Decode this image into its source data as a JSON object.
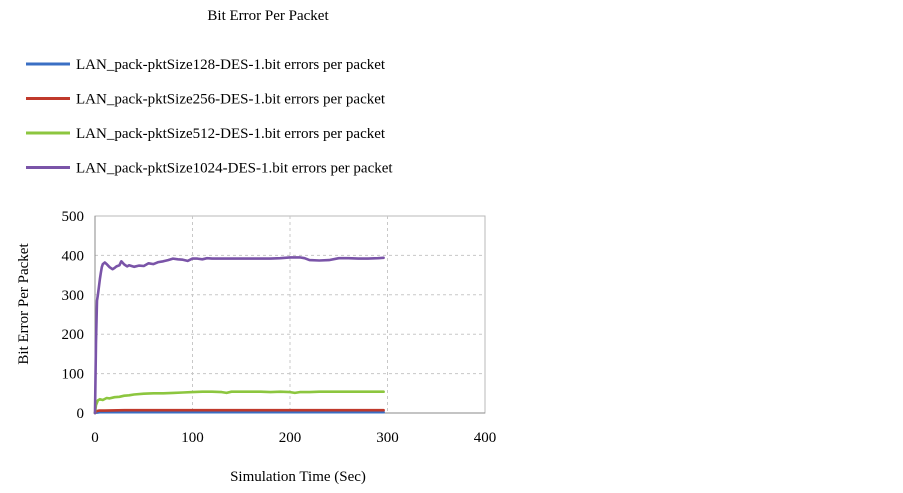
{
  "chart_data": {
    "type": "line",
    "title": "Bit Error Per Packet",
    "xlabel": "Simulation Time (Sec)",
    "ylabel": "Bit Error Per Packet",
    "xlim": [
      0,
      400
    ],
    "ylim": [
      0,
      500
    ],
    "x_ticks": [
      "0",
      "100",
      "200",
      "300",
      "400"
    ],
    "y_ticks": [
      "0",
      "100",
      "200",
      "300",
      "400",
      "500"
    ],
    "grid": true,
    "legend_position": "top",
    "series": [
      {
        "name": "LAN_pack-pktSize128-DES-1.bit errors per packet",
        "color": "#3a6fc4",
        "x": [
          0,
          1,
          2,
          5,
          50,
          100,
          150,
          200,
          250,
          296
        ],
        "y": [
          0,
          1,
          1,
          2,
          2,
          2,
          2,
          2,
          2,
          2
        ]
      },
      {
        "name": "LAN_pack-pktSize256-DES-1.bit errors per packet",
        "color": "#c0392b",
        "x": [
          0,
          1,
          2,
          4,
          10,
          30,
          50,
          100,
          150,
          200,
          250,
          296
        ],
        "y": [
          0,
          4,
          5,
          6,
          6,
          7,
          7,
          7,
          7,
          7,
          7,
          7
        ]
      },
      {
        "name": "LAN_pack-pktSize512-DES-1.bit errors per packet",
        "color": "#8cc63f",
        "x": [
          0,
          1,
          3,
          5,
          8,
          12,
          15,
          20,
          25,
          30,
          35,
          40,
          50,
          60,
          70,
          80,
          90,
          100,
          110,
          120,
          130,
          135,
          140,
          150,
          160,
          170,
          180,
          190,
          200,
          205,
          210,
          220,
          230,
          240,
          250,
          260,
          270,
          280,
          290,
          296
        ],
        "y": [
          0,
          20,
          32,
          35,
          33,
          38,
          37,
          40,
          41,
          44,
          45,
          47,
          49,
          50,
          50,
          51,
          52,
          53,
          54,
          54,
          53,
          51,
          54,
          54,
          54,
          54,
          53,
          54,
          53,
          51,
          53,
          53,
          54,
          54,
          54,
          54,
          54,
          54,
          54,
          54
        ]
      },
      {
        "name": "LAN_pack-pktSize1024-DES-1.bit errors per packet",
        "color": "#7a54a8",
        "x": [
          0,
          1,
          2,
          3,
          4,
          5,
          6,
          7,
          8,
          10,
          12,
          15,
          18,
          20,
          22,
          25,
          27,
          30,
          33,
          35,
          40,
          45,
          50,
          55,
          60,
          65,
          70,
          75,
          80,
          85,
          90,
          95,
          100,
          105,
          110,
          115,
          120,
          130,
          140,
          150,
          160,
          170,
          180,
          190,
          200,
          210,
          215,
          220,
          230,
          240,
          250,
          260,
          270,
          280,
          290,
          296
        ],
        "y": [
          0,
          180,
          285,
          300,
          320,
          340,
          355,
          370,
          378,
          382,
          378,
          370,
          365,
          368,
          372,
          375,
          385,
          377,
          372,
          375,
          371,
          374,
          373,
          380,
          378,
          383,
          385,
          388,
          392,
          390,
          389,
          386,
          392,
          392,
          390,
          393,
          392,
          392,
          392,
          392,
          392,
          392,
          392,
          393,
          395,
          395,
          393,
          388,
          387,
          388,
          393,
          393,
          392,
          392,
          393,
          394
        ]
      }
    ]
  }
}
